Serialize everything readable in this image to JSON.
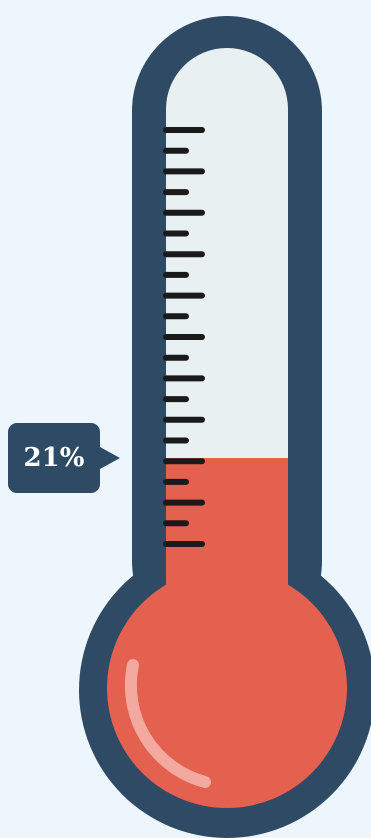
{
  "thermometer": {
    "level_percent": 21,
    "level_label": "21%",
    "tick_count": 21,
    "colors": {
      "background": "#eef6fd",
      "outline": "#2f4a64",
      "tube_empty": "#e9f0f1",
      "mercury": "#e4604f",
      "highlight": "#f3a8a0",
      "ticks": "#1a1a1a"
    }
  }
}
